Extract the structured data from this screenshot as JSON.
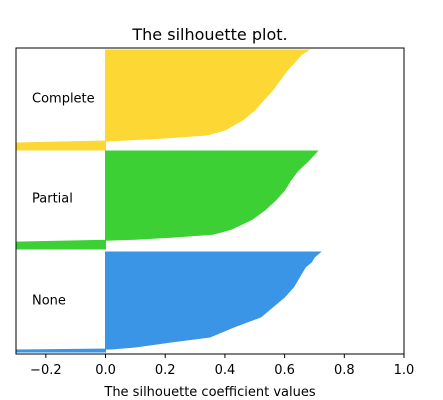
{
  "chart_data": {
    "type": "area",
    "title": "The silhouette plot.",
    "xlabel": "The silhouette coefficient values",
    "ylabel": "",
    "xlim": [
      -0.3,
      1.0
    ],
    "xticks": [
      -0.2,
      0.0,
      0.2,
      0.4,
      0.6,
      0.8,
      1.0
    ],
    "xtick_labels": [
      "−0.2",
      "0.0",
      "0.2",
      "0.4",
      "0.6",
      "0.8",
      "1.0"
    ],
    "grid": false,
    "legend": "none",
    "series": [
      {
        "name": "Complete",
        "color": "#FDD835",
        "min_value": -0.3,
        "max_value": 0.68,
        "profile": [
          [
            0,
            0.68
          ],
          [
            0.05,
            0.655
          ],
          [
            0.1,
            0.64
          ],
          [
            0.2,
            0.61
          ],
          [
            0.3,
            0.585
          ],
          [
            0.4,
            0.56
          ],
          [
            0.5,
            0.53
          ],
          [
            0.6,
            0.5
          ],
          [
            0.7,
            0.46
          ],
          [
            0.8,
            0.4
          ],
          [
            0.85,
            0.34
          ],
          [
            0.88,
            0.2
          ],
          [
            0.9,
            0.07
          ],
          [
            0.91,
            0.0
          ],
          [
            0.93,
            -0.3
          ],
          [
            1,
            -0.3
          ]
        ]
      },
      {
        "name": "Partial",
        "color": "#3DD035",
        "min_value": -0.3,
        "max_value": 0.71,
        "profile": [
          [
            0,
            0.71
          ],
          [
            0.05,
            0.695
          ],
          [
            0.1,
            0.68
          ],
          [
            0.2,
            0.645
          ],
          [
            0.3,
            0.62
          ],
          [
            0.4,
            0.6
          ],
          [
            0.5,
            0.57
          ],
          [
            0.6,
            0.535
          ],
          [
            0.7,
            0.49
          ],
          [
            0.8,
            0.42
          ],
          [
            0.85,
            0.36
          ],
          [
            0.88,
            0.22
          ],
          [
            0.9,
            0.1
          ],
          [
            0.91,
            0.0
          ],
          [
            0.93,
            -0.3
          ],
          [
            1,
            -0.3
          ]
        ]
      },
      {
        "name": "None",
        "color": "#3A95E6",
        "min_value": -0.3,
        "max_value": 0.72,
        "profile": [
          [
            0,
            0.72
          ],
          [
            0.05,
            0.7
          ],
          [
            0.1,
            0.69
          ],
          [
            0.15,
            0.67
          ],
          [
            0.25,
            0.65
          ],
          [
            0.35,
            0.63
          ],
          [
            0.45,
            0.6
          ],
          [
            0.55,
            0.56
          ],
          [
            0.65,
            0.52
          ],
          [
            0.75,
            0.43
          ],
          [
            0.85,
            0.35
          ],
          [
            0.9,
            0.22
          ],
          [
            0.95,
            0.1
          ],
          [
            0.97,
            0.02
          ],
          [
            0.98,
            -0.3
          ],
          [
            1,
            -0.3
          ]
        ]
      }
    ]
  }
}
